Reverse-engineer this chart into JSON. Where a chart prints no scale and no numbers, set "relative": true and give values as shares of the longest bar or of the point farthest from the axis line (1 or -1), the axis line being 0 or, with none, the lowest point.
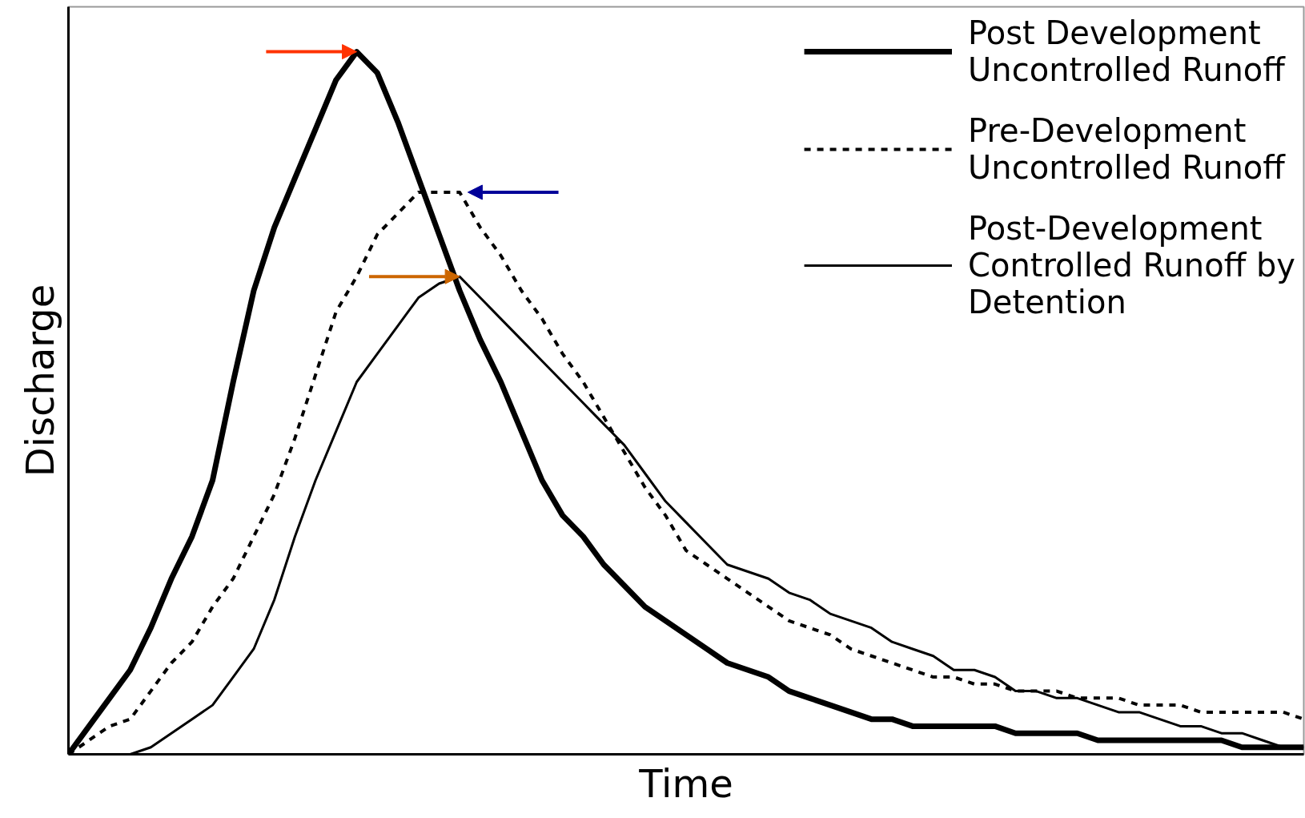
{
  "chart_data": {
    "type": "line",
    "relative": true,
    "xlabel": "Time",
    "ylabel": "Discharge",
    "legend": "top right",
    "marker": "none",
    "categories": [
      null,
      null,
      null,
      null,
      null,
      null,
      null,
      null,
      null,
      null,
      null,
      null,
      null,
      null,
      null,
      null,
      null,
      null,
      null,
      null,
      null,
      null,
      null,
      null,
      null,
      null,
      null,
      null,
      null,
      null,
      null,
      null,
      null,
      null,
      null,
      null,
      null,
      null,
      null,
      null,
      null,
      null,
      null,
      null,
      null,
      null,
      null,
      null,
      null,
      null,
      null,
      null,
      null,
      null,
      null,
      null,
      null,
      null,
      null,
      null,
      null
    ],
    "series": [
      {
        "name": "Post Development Uncontrolled Runoff",
        "color": "#000000",
        "line_style": "solid",
        "values": [
          0,
          0.04,
          0.08,
          0.12,
          0.18,
          0.25,
          0.31,
          0.39,
          0.53,
          0.66,
          0.75,
          0.82,
          0.89,
          0.96,
          1,
          0.97,
          0.9,
          0.82,
          0.74,
          0.66,
          0.59,
          0.53,
          0.46,
          0.39,
          0.34,
          0.31,
          0.27,
          0.24,
          0.21,
          0.19,
          0.17,
          0.15,
          0.13,
          0.12,
          0.11,
          0.09,
          0.08,
          0.07,
          0.06,
          0.05,
          0.05,
          0.04,
          0.04,
          0.04,
          0.04,
          0.04,
          0.03,
          0.03,
          0.03,
          0.03,
          0.02,
          0.02,
          0.02,
          0.02,
          0.02,
          0.02,
          0.02,
          0.01,
          0.01,
          0.01,
          0.01
        ]
      },
      {
        "name": "Pre-Development Uncontrolled Runoff",
        "color": "#000000",
        "line_style": "dashed",
        "values": [
          0,
          0.02,
          0.04,
          0.05,
          0.09,
          0.13,
          0.16,
          0.21,
          0.25,
          0.31,
          0.37,
          0.45,
          0.54,
          0.63,
          0.68,
          0.74,
          0.77,
          0.8,
          0.8,
          0.8,
          0.75,
          0.71,
          0.66,
          0.62,
          0.57,
          0.53,
          0.48,
          0.43,
          0.38,
          0.34,
          0.29,
          0.27,
          0.25,
          0.23,
          0.21,
          0.19,
          0.18,
          0.17,
          0.15,
          0.14,
          0.13,
          0.12,
          0.11,
          0.11,
          0.1,
          0.1,
          0.09,
          0.09,
          0.09,
          0.08,
          0.08,
          0.08,
          0.07,
          0.07,
          0.07,
          0.06,
          0.06,
          0.06,
          0.06,
          0.06,
          0.05
        ]
      },
      {
        "name": "Post-Development Controlled Runoff by Detention",
        "color": "#000000",
        "line_style": "solid",
        "values": [
          0,
          0,
          0,
          0,
          0.01,
          0.03,
          0.05,
          0.07,
          0.11,
          0.15,
          0.22,
          0.31,
          0.39,
          0.46,
          0.53,
          0.57,
          0.61,
          0.65,
          0.67,
          0.68,
          0.65,
          0.62,
          0.59,
          0.56,
          0.53,
          0.5,
          0.47,
          0.44,
          0.4,
          0.36,
          0.33,
          0.3,
          0.27,
          0.26,
          0.25,
          0.23,
          0.22,
          0.2,
          0.19,
          0.18,
          0.16,
          0.15,
          0.14,
          0.12,
          0.12,
          0.11,
          0.09,
          0.09,
          0.08,
          0.08,
          0.07,
          0.06,
          0.06,
          0.05,
          0.04,
          0.04,
          0.03,
          0.03,
          0.02,
          0.01,
          0.01
        ]
      }
    ]
  }
}
